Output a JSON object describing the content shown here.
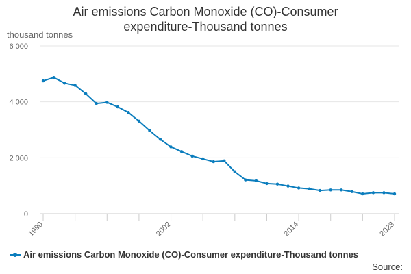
{
  "chart_data": {
    "type": "line",
    "title_lines": [
      "Air emissions Carbon Monoxide (CO)-Consumer",
      "expenditure-Thousand tonnes"
    ],
    "ylabel": "thousand tonnes",
    "xlabel": "",
    "ylim": [
      0,
      6000
    ],
    "yticks": [
      0,
      2000,
      4000,
      6000
    ],
    "ytick_labels": [
      "0",
      "2 000",
      "4 000",
      "6 000"
    ],
    "xlim": [
      1990,
      2023
    ],
    "xticks_minor": [
      1990,
      1993,
      1996,
      1999,
      2002,
      2005,
      2008,
      2011,
      2014,
      2017,
      2020,
      2023
    ],
    "xtick_labels": [
      {
        "year": 1990,
        "label": "1990"
      },
      {
        "year": 2002,
        "label": "2002"
      },
      {
        "year": 2014,
        "label": "2014"
      },
      {
        "year": 2023,
        "label": "2023"
      }
    ],
    "grid": true,
    "legend_position": "bottom-left",
    "series": [
      {
        "name": "Air emissions Carbon Monoxide (CO)-Consumer expenditure-Thousand tonnes",
        "color": "#0b7dbd",
        "x": [
          1990,
          1991,
          1992,
          1993,
          1994,
          1995,
          1996,
          1997,
          1998,
          1999,
          2000,
          2001,
          2002,
          2003,
          2004,
          2005,
          2006,
          2007,
          2008,
          2009,
          2010,
          2011,
          2012,
          2013,
          2014,
          2015,
          2016,
          2017,
          2018,
          2019,
          2020,
          2021,
          2022,
          2023
        ],
        "values": [
          4750,
          4870,
          4670,
          4590,
          4290,
          3940,
          3980,
          3820,
          3620,
          3310,
          2970,
          2660,
          2390,
          2220,
          2060,
          1960,
          1860,
          1890,
          1500,
          1210,
          1180,
          1080,
          1060,
          990,
          920,
          890,
          830,
          850,
          850,
          790,
          710,
          750,
          750,
          710
        ]
      }
    ]
  },
  "footer": {
    "source_label": "Source:"
  }
}
